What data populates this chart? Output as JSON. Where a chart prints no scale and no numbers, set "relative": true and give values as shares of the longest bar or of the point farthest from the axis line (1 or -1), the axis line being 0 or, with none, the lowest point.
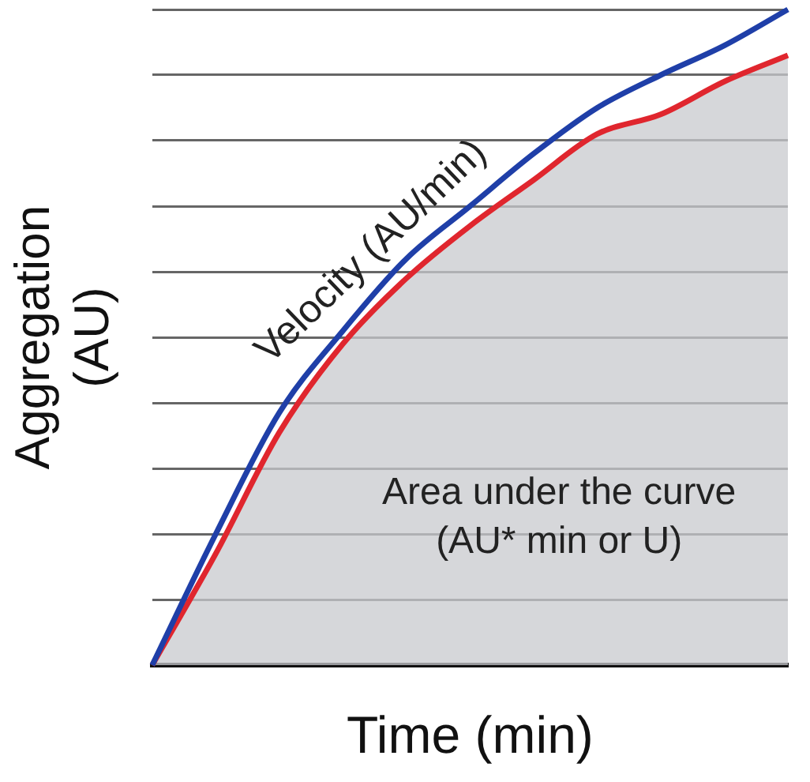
{
  "chart_data": {
    "type": "line",
    "relative": true,
    "xlabel": "Time (min)",
    "ylabel": "Aggregation (AU)",
    "categories": [
      null,
      null,
      null,
      null,
      null,
      null,
      null,
      null,
      null,
      null,
      null
    ],
    "series": [
      {
        "color": "#1f3fa8",
        "values": [
          0,
          0.2,
          0.385,
          0.51,
          0.62,
          0.7,
          0.78,
          0.85,
          0.9,
          0.945,
          1.0
        ]
      },
      {
        "type": "area",
        "color": "#e0262e",
        "values": [
          0,
          0.17,
          0.355,
          0.49,
          0.59,
          0.67,
          0.74,
          0.81,
          0.84,
          0.89,
          0.93
        ]
      }
    ],
    "annotations": [
      "Velocity (AU/min)",
      "Area under the curve (AU* min or U)"
    ],
    "grid": "y",
    "legend": false,
    "marker": "none",
    "line_style": "solid"
  }
}
